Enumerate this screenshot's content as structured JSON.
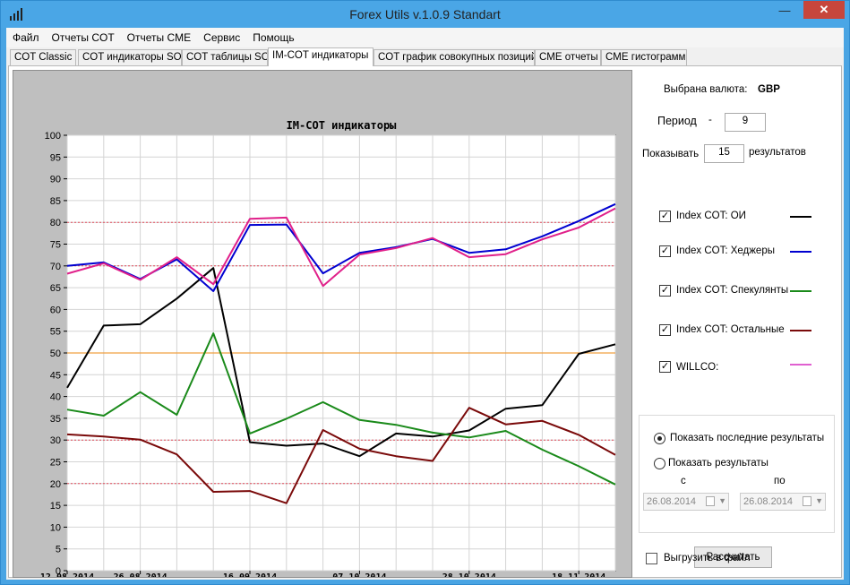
{
  "window": {
    "title": "Forex Utils v.1.0.9 Standart"
  },
  "menu": [
    "Файл",
    "Отчеты COT",
    "Отчеты CME",
    "Сервис",
    "Помощь"
  ],
  "tabs": [
    "COT  Classic",
    "COT индикаторы SO",
    "COT таблицы SO",
    "IM-COT индикаторы",
    "COT график совокупных позиций",
    "CME отчеты",
    "CME гистограммы"
  ],
  "active_tab": "IM-COT индикаторы",
  "settings": {
    "currency_label": "Выбрана валюта:",
    "currency_value": "GBP",
    "period_label": "Период",
    "period_dash": "-",
    "period_value": "9",
    "show_label": "Показывать",
    "show_value": "15",
    "results_label": "результатов"
  },
  "legend_items": [
    {
      "label": "Index COT: ОИ",
      "color": "#000000",
      "checked": true
    },
    {
      "label": "Index COT: Хеджеры",
      "color": "#0000d0",
      "checked": true
    },
    {
      "label": "Index COT: Спекулянты",
      "color": "#1a8a1a",
      "checked": true
    },
    {
      "label": "Index COT: Остальные",
      "color": "#7a0a0a",
      "checked": true
    },
    {
      "label": "WILLCO:",
      "color": "#e060d0",
      "checked": true
    }
  ],
  "range": {
    "last_results_label": "Показать последние результаты",
    "show_results_label": "Показать результаты",
    "from_label": "с",
    "to_label": "по",
    "from_date": "26.08.2014",
    "to_date": "26.08.2014"
  },
  "calculate_button": "Рассчитать",
  "export_label": "Выгрузить в файл",
  "chart_data": {
    "type": "line",
    "title": "IM-COT индикаторы",
    "ylim": [
      0,
      100
    ],
    "y_ticks": [
      0,
      5,
      10,
      15,
      20,
      25,
      30,
      35,
      40,
      45,
      50,
      55,
      60,
      65,
      70,
      75,
      80,
      85,
      90,
      95,
      100
    ],
    "x": [
      "12.08.2014",
      "19.08.2014",
      "26.08.2014",
      "02.09.2014",
      "09.09.2014",
      "16.09.2014",
      "23.09.2014",
      "30.09.2014",
      "07.10.2014",
      "14.10.2014",
      "21.10.2014",
      "28.10.2014",
      "04.11.2014",
      "11.11.2014",
      "18.11.2014",
      "25.11.2014"
    ],
    "x_tick_labels": [
      "12.08.2014",
      "26.08.2014",
      "16.09.2014",
      "07.10.2014",
      "28.10.2014",
      "18.11.2014"
    ],
    "grid": true,
    "reference_lines": [
      {
        "y": 80,
        "color": "#e34a5a",
        "style": "dashed"
      },
      {
        "y": 70,
        "color": "#e34a5a",
        "style": "dashed"
      },
      {
        "y": 50,
        "color": "#f0a040",
        "style": "solid"
      },
      {
        "y": 30,
        "color": "#e34a5a",
        "style": "dashed"
      },
      {
        "y": 20,
        "color": "#e34a5a",
        "style": "dashed"
      }
    ],
    "series": [
      {
        "name": "Index COT: ОИ",
        "color": "#000000",
        "values": [
          42,
          56.3,
          56.6,
          62.5,
          69.5,
          29.5,
          28.7,
          29.2,
          26.3,
          31.5,
          30.8,
          32.2,
          37.2,
          38,
          49.8,
          52
        ]
      },
      {
        "name": "Index COT: Хеджеры",
        "color": "#0000d0",
        "values": [
          70,
          70.8,
          67,
          71.5,
          64.2,
          79.4,
          79.5,
          68.3,
          73,
          74.3,
          76.2,
          73,
          73.8,
          76.8,
          80.3,
          84.2
        ]
      },
      {
        "name": "Index COT: Спекулянты",
        "color": "#1a8a1a",
        "values": [
          37,
          35.6,
          41,
          35.8,
          54.5,
          31.5,
          34.9,
          38.7,
          34.6,
          33.5,
          31.7,
          30.6,
          32.1,
          27.8,
          24,
          19.8
        ]
      },
      {
        "name": "Index COT: Остальные",
        "color": "#7a0a0a",
        "values": [
          31.3,
          30.8,
          30.1,
          26.7,
          18.1,
          18.3,
          15.5,
          32.3,
          28,
          26.3,
          25.2,
          37.4,
          33.6,
          34.4,
          31.2,
          26.6
        ]
      },
      {
        "name": "WILLCO:",
        "color": "#e0208a",
        "values": [
          68.2,
          70.6,
          66.8,
          72,
          65.8,
          80.8,
          81.1,
          65.4,
          72.6,
          74.1,
          76.4,
          72,
          72.7,
          76.1,
          78.8,
          83.2
        ]
      }
    ]
  }
}
